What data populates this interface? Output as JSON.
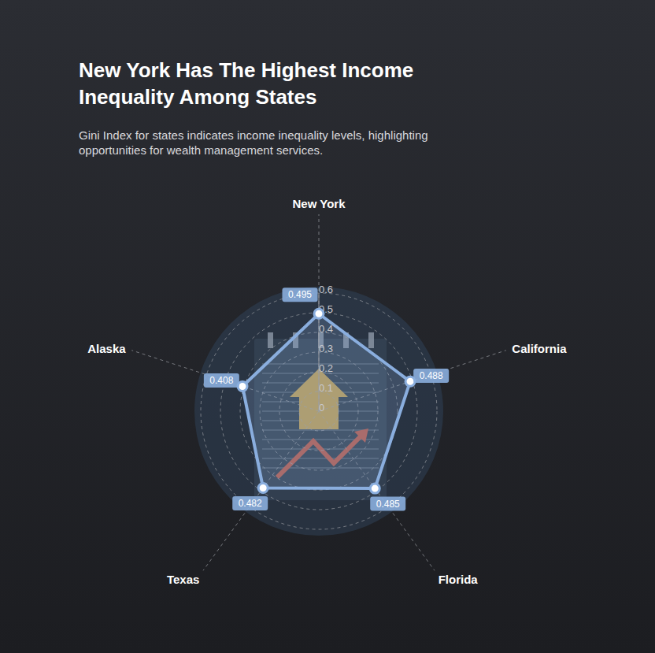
{
  "chart_data": {
    "type": "radar",
    "title": "New York Has The Highest Income Inequality Among States",
    "subtitle": "Gini Index for states indicates income inequality levels, highlighting opportunities for wealth management services.",
    "categories": [
      "New York",
      "California",
      "Florida",
      "Texas",
      "Alaska"
    ],
    "values": [
      0.495,
      0.488,
      0.485,
      0.482,
      0.408
    ],
    "color": "#8aaede",
    "ylim": [
      0,
      0.6
    ],
    "yticks": [
      0,
      0.1,
      0.2,
      0.3,
      0.4,
      0.5,
      0.6
    ],
    "grid": true,
    "data_labels": true
  }
}
